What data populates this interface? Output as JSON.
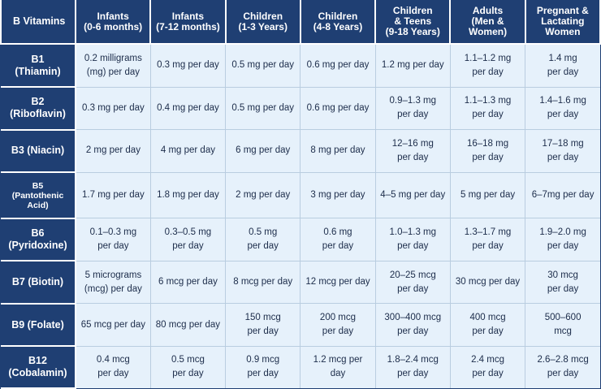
{
  "header": {
    "corner": "B Vitamins",
    "columns": [
      [
        "Infants",
        "(0-6 months)"
      ],
      [
        "Infants",
        "(7-12 months)"
      ],
      [
        "Children",
        "(1-3 Years)"
      ],
      [
        "Children",
        "(4-8 Years)"
      ],
      [
        "Children",
        "& Teens",
        "(9-18 Years)"
      ],
      [
        "Adults",
        "(Men &",
        "Women)"
      ],
      [
        "Pregnant &",
        "Lactating",
        "Women"
      ]
    ]
  },
  "rows": [
    {
      "vitamin": [
        "B1",
        "(Thiamin)"
      ],
      "cells": [
        [
          "0.2 milligrams",
          "(mg) per day"
        ],
        [
          "0.3 mg per day"
        ],
        [
          "0.5 mg per day"
        ],
        [
          "0.6 mg per day"
        ],
        [
          "1.2 mg per day"
        ],
        [
          "1.1–1.2 mg",
          "per day"
        ],
        [
          "1.4 mg",
          "per day"
        ]
      ]
    },
    {
      "vitamin": [
        "B2",
        "(Riboflavin)"
      ],
      "cells": [
        [
          "0.3 mg per day"
        ],
        [
          "0.4 mg per day"
        ],
        [
          "0.5 mg per day"
        ],
        [
          "0.6 mg per day"
        ],
        [
          "0.9–1.3 mg",
          "per day"
        ],
        [
          "1.1–1.3 mg",
          "per day"
        ],
        [
          "1.4–1.6 mg",
          "per day"
        ]
      ]
    },
    {
      "vitamin": [
        "B3 (Niacin)"
      ],
      "cells": [
        [
          "2 mg per day"
        ],
        [
          "4 mg per day"
        ],
        [
          "6 mg per day"
        ],
        [
          "8 mg per day"
        ],
        [
          "12–16 mg",
          "per day"
        ],
        [
          "16–18 mg",
          "per day"
        ],
        [
          "17–18 mg",
          "per day"
        ]
      ]
    },
    {
      "vitamin": [
        "B5",
        "(Pantothenic",
        "Acid)"
      ],
      "small": true,
      "cells": [
        [
          "1.7 mg per day"
        ],
        [
          "1.8 mg per day"
        ],
        [
          "2 mg per day"
        ],
        [
          "3 mg per day"
        ],
        [
          "4–5 mg per day"
        ],
        [
          "5 mg per day"
        ],
        [
          "6–7mg per day"
        ]
      ]
    },
    {
      "vitamin": [
        "B6",
        "(Pyridoxine)"
      ],
      "cells": [
        [
          "0.1–0.3 mg",
          "per day"
        ],
        [
          "0.3–0.5 mg",
          "per day"
        ],
        [
          "0.5 mg",
          "per day"
        ],
        [
          "0.6 mg",
          "per day"
        ],
        [
          "1.0–1.3 mg",
          "per day"
        ],
        [
          "1.3–1.7 mg",
          "per day"
        ],
        [
          "1.9–2.0 mg",
          "per day"
        ]
      ]
    },
    {
      "vitamin": [
        "B7 (Biotin)"
      ],
      "cells": [
        [
          "5 micrograms",
          "(mcg) per day"
        ],
        [
          "6 mcg per day"
        ],
        [
          "8 mcg per day"
        ],
        [
          "12 mcg per day"
        ],
        [
          "20–25 mcg",
          "per day"
        ],
        [
          "30 mcg per day"
        ],
        [
          "30 mcg",
          "per day"
        ]
      ]
    },
    {
      "vitamin": [
        "B9 (Folate)"
      ],
      "cells": [
        [
          "65 mcg per day"
        ],
        [
          "80 mcg per day"
        ],
        [
          "150 mcg",
          "per day"
        ],
        [
          "200 mcg",
          "per day"
        ],
        [
          "300–400 mcg",
          "per day"
        ],
        [
          "400 mcg",
          "per day"
        ],
        [
          "500–600",
          "mcg"
        ]
      ]
    },
    {
      "vitamin": [
        "B12",
        "(Cobalamin)"
      ],
      "cells": [
        [
          "0.4 mcg",
          "per day"
        ],
        [
          "0.5 mcg",
          "per day"
        ],
        [
          "0.9 mcg",
          "per day"
        ],
        [
          "1.2 mcg per",
          "day"
        ],
        [
          "1.8–2.4 mcg",
          "per day"
        ],
        [
          "2.4 mcg",
          "per day"
        ],
        [
          "2.6–2.8 mcg",
          "per day"
        ]
      ]
    }
  ]
}
